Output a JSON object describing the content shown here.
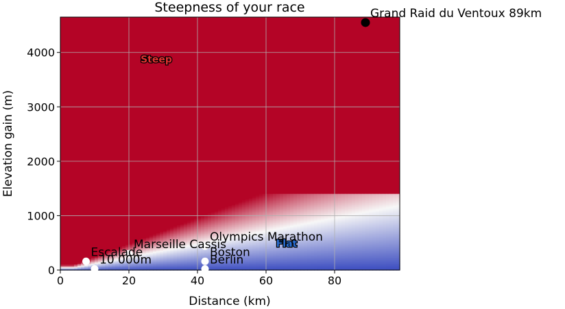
{
  "chart_data": {
    "type": "heatmap",
    "title": "Steepness of your race",
    "xlabel": "Distance (km)",
    "ylabel": "Elevation gain (m)",
    "xlim": [
      0,
      99
    ],
    "ylim": [
      0,
      4650
    ],
    "xticks": [
      0,
      20,
      40,
      60,
      80
    ],
    "yticks": [
      0,
      1000,
      2000,
      3000,
      4000
    ],
    "grid": true,
    "colormap": "coolwarm",
    "colors": {
      "low": "#3b4cc0",
      "mid": "#f7f7f7",
      "high": "#b40426"
    },
    "region_labels": [
      {
        "text": "Steep",
        "x": 28,
        "y": 3880,
        "color": "#e03030"
      },
      {
        "text": "Flat",
        "x": 66,
        "y": 490,
        "color": "#2a6fd6"
      }
    ],
    "races": [
      {
        "name": "Grand Raid du Ventoux 89km",
        "x": 89,
        "y": 4550,
        "color": "#000000"
      },
      {
        "name": "Olympics Marathon",
        "x": 42.2,
        "y": 440,
        "color": "#ffffff"
      },
      {
        "name": "Marseille Cassis",
        "x": 20,
        "y": 300,
        "color": "#ffffff"
      },
      {
        "name": "Escalade",
        "x": 7.5,
        "y": 160,
        "color": "#ffffff"
      },
      {
        "name": "10 000m",
        "x": 10,
        "y": 20,
        "color": "#ffffff"
      },
      {
        "name": "Boston",
        "x": 42.2,
        "y": 160,
        "color": "#ffffff"
      },
      {
        "name": "Berlin",
        "x": 42.2,
        "y": 20,
        "color": "#ffffff"
      }
    ]
  }
}
